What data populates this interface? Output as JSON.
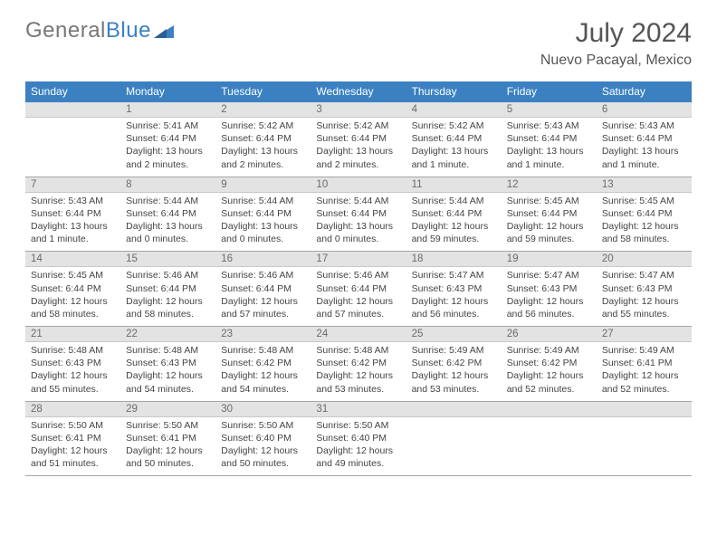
{
  "logo": {
    "t1": "General",
    "t2": "Blue"
  },
  "title": "July 2024",
  "location": "Nuevo Pacayal, Mexico",
  "colors": {
    "header_bg": "#3b81c2",
    "header_fg": "#ffffff",
    "daynum_bg": "#e3e3e3",
    "daynum_fg": "#6b6b6b",
    "text": "#444444",
    "rule": "#a6a6a6"
  },
  "weekdays": [
    "Sunday",
    "Monday",
    "Tuesday",
    "Wednesday",
    "Thursday",
    "Friday",
    "Saturday"
  ],
  "weeks": [
    {
      "nums": [
        "",
        "1",
        "2",
        "3",
        "4",
        "5",
        "6"
      ],
      "cells": [
        {
          "empty": true
        },
        {
          "sr": "5:41 AM",
          "ss": "6:44 PM",
          "dl": "13 hours and 2 minutes."
        },
        {
          "sr": "5:42 AM",
          "ss": "6:44 PM",
          "dl": "13 hours and 2 minutes."
        },
        {
          "sr": "5:42 AM",
          "ss": "6:44 PM",
          "dl": "13 hours and 2 minutes."
        },
        {
          "sr": "5:42 AM",
          "ss": "6:44 PM",
          "dl": "13 hours and 1 minute."
        },
        {
          "sr": "5:43 AM",
          "ss": "6:44 PM",
          "dl": "13 hours and 1 minute."
        },
        {
          "sr": "5:43 AM",
          "ss": "6:44 PM",
          "dl": "13 hours and 1 minute."
        }
      ]
    },
    {
      "nums": [
        "7",
        "8",
        "9",
        "10",
        "11",
        "12",
        "13"
      ],
      "cells": [
        {
          "sr": "5:43 AM",
          "ss": "6:44 PM",
          "dl": "13 hours and 1 minute."
        },
        {
          "sr": "5:44 AM",
          "ss": "6:44 PM",
          "dl": "13 hours and 0 minutes."
        },
        {
          "sr": "5:44 AM",
          "ss": "6:44 PM",
          "dl": "13 hours and 0 minutes."
        },
        {
          "sr": "5:44 AM",
          "ss": "6:44 PM",
          "dl": "13 hours and 0 minutes."
        },
        {
          "sr": "5:44 AM",
          "ss": "6:44 PM",
          "dl": "12 hours and 59 minutes."
        },
        {
          "sr": "5:45 AM",
          "ss": "6:44 PM",
          "dl": "12 hours and 59 minutes."
        },
        {
          "sr": "5:45 AM",
          "ss": "6:44 PM",
          "dl": "12 hours and 58 minutes."
        }
      ]
    },
    {
      "nums": [
        "14",
        "15",
        "16",
        "17",
        "18",
        "19",
        "20"
      ],
      "cells": [
        {
          "sr": "5:45 AM",
          "ss": "6:44 PM",
          "dl": "12 hours and 58 minutes."
        },
        {
          "sr": "5:46 AM",
          "ss": "6:44 PM",
          "dl": "12 hours and 58 minutes."
        },
        {
          "sr": "5:46 AM",
          "ss": "6:44 PM",
          "dl": "12 hours and 57 minutes."
        },
        {
          "sr": "5:46 AM",
          "ss": "6:44 PM",
          "dl": "12 hours and 57 minutes."
        },
        {
          "sr": "5:47 AM",
          "ss": "6:43 PM",
          "dl": "12 hours and 56 minutes."
        },
        {
          "sr": "5:47 AM",
          "ss": "6:43 PM",
          "dl": "12 hours and 56 minutes."
        },
        {
          "sr": "5:47 AM",
          "ss": "6:43 PM",
          "dl": "12 hours and 55 minutes."
        }
      ]
    },
    {
      "nums": [
        "21",
        "22",
        "23",
        "24",
        "25",
        "26",
        "27"
      ],
      "cells": [
        {
          "sr": "5:48 AM",
          "ss": "6:43 PM",
          "dl": "12 hours and 55 minutes."
        },
        {
          "sr": "5:48 AM",
          "ss": "6:43 PM",
          "dl": "12 hours and 54 minutes."
        },
        {
          "sr": "5:48 AM",
          "ss": "6:42 PM",
          "dl": "12 hours and 54 minutes."
        },
        {
          "sr": "5:48 AM",
          "ss": "6:42 PM",
          "dl": "12 hours and 53 minutes."
        },
        {
          "sr": "5:49 AM",
          "ss": "6:42 PM",
          "dl": "12 hours and 53 minutes."
        },
        {
          "sr": "5:49 AM",
          "ss": "6:42 PM",
          "dl": "12 hours and 52 minutes."
        },
        {
          "sr": "5:49 AM",
          "ss": "6:41 PM",
          "dl": "12 hours and 52 minutes."
        }
      ]
    },
    {
      "nums": [
        "28",
        "29",
        "30",
        "31",
        "",
        "",
        ""
      ],
      "cells": [
        {
          "sr": "5:50 AM",
          "ss": "6:41 PM",
          "dl": "12 hours and 51 minutes."
        },
        {
          "sr": "5:50 AM",
          "ss": "6:41 PM",
          "dl": "12 hours and 50 minutes."
        },
        {
          "sr": "5:50 AM",
          "ss": "6:40 PM",
          "dl": "12 hours and 50 minutes."
        },
        {
          "sr": "5:50 AM",
          "ss": "6:40 PM",
          "dl": "12 hours and 49 minutes."
        },
        {
          "empty": true
        },
        {
          "empty": true
        },
        {
          "empty": true
        }
      ]
    }
  ],
  "labels": {
    "sunrise": "Sunrise:",
    "sunset": "Sunset:",
    "daylight": "Daylight:"
  }
}
